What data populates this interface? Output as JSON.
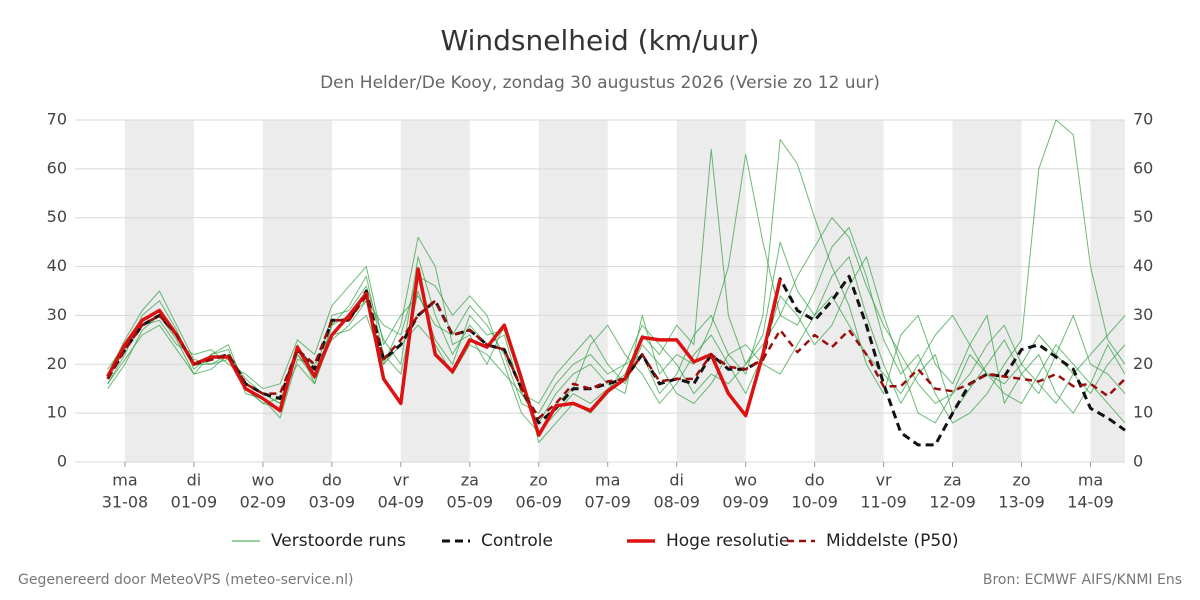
{
  "chart_data": {
    "type": "line",
    "title": "Windsnelheid (km/uur)",
    "subtitle": "Den Helder/De Kooy, zondag 30 augustus 2026 (Versie zo 12 uur)",
    "categories": [
      null,
      "31-08",
      null,
      null,
      null,
      "01-09",
      null,
      null,
      null,
      "02-09",
      null,
      null,
      null,
      "03-09",
      null,
      null,
      null,
      "04-09",
      null,
      null,
      null,
      "05-09",
      null,
      null,
      null,
      "06-09",
      null,
      null,
      null,
      "07-09",
      null,
      null,
      null,
      "08-09",
      null,
      null,
      null,
      "09-09",
      null,
      null,
      null,
      "10-09",
      null,
      null,
      null,
      "11-09",
      null,
      null,
      null,
      "12-09",
      null,
      null,
      null,
      "13-09",
      null,
      null,
      null,
      "14-09",
      null,
      null
    ],
    "weekdays": [
      null,
      "ma",
      null,
      null,
      null,
      "di",
      null,
      null,
      null,
      "wo",
      null,
      null,
      null,
      "do",
      null,
      null,
      null,
      "vr",
      null,
      null,
      null,
      "za",
      null,
      null,
      null,
      "zo",
      null,
      null,
      null,
      "ma",
      null,
      null,
      null,
      "di",
      null,
      null,
      null,
      "wo",
      null,
      null,
      null,
      "do",
      null,
      null,
      null,
      "vr",
      null,
      null,
      null,
      "za",
      null,
      null,
      null,
      "zo",
      null,
      null,
      null,
      "ma",
      null,
      null
    ],
    "ylim": [
      0,
      70
    ],
    "yticks": [
      0,
      10,
      20,
      30,
      40,
      50,
      60,
      70
    ],
    "y2lim": [
      0,
      70
    ],
    "y2ticks": [
      0,
      10,
      20,
      30,
      40,
      50,
      60,
      70
    ],
    "grid": true,
    "ensemble": {
      "name": "Verstoorde runs",
      "color": "#2e9e3e",
      "runs": [
        [
          16,
          22,
          30,
          33,
          27,
          19,
          22,
          24,
          15,
          12,
          11,
          24,
          16,
          28,
          32,
          38,
          22,
          18,
          35,
          25,
          20,
          30,
          26,
          27,
          16,
          6,
          10,
          14,
          12,
          15,
          18,
          26,
          22,
          28,
          24,
          64,
          30,
          20,
          26,
          45,
          35,
          30,
          38,
          42,
          30,
          20,
          12,
          18,
          22,
          10,
          15,
          20,
          25,
          18,
          14,
          22,
          30,
          20,
          18,
          14
        ],
        [
          18,
          25,
          31,
          35,
          28,
          21,
          20,
          22,
          17,
          14,
          12,
          22,
          18,
          30,
          31,
          36,
          25,
          20,
          42,
          30,
          22,
          28,
          24,
          26,
          14,
          8,
          14,
          18,
          20,
          16,
          14,
          30,
          18,
          22,
          20,
          28,
          40,
          63,
          45,
          30,
          28,
          35,
          44,
          48,
          38,
          25,
          18,
          22,
          14,
          8,
          10,
          14,
          20,
          25,
          60,
          70,
          67,
          40,
          25,
          20
        ],
        [
          15,
          20,
          27,
          30,
          25,
          18,
          22,
          23,
          14,
          13,
          9,
          21,
          20,
          25,
          28,
          33,
          20,
          28,
          46,
          40,
          24,
          26,
          20,
          28,
          18,
          4,
          8,
          12,
          10,
          14,
          20,
          22,
          14,
          18,
          26,
          30,
          22,
          18,
          30,
          66,
          61,
          50,
          40,
          32,
          20,
          14,
          26,
          30,
          20,
          16,
          24,
          30,
          12,
          18,
          22,
          14,
          10,
          16,
          24,
          18
        ],
        [
          19,
          24,
          28,
          29,
          24,
          22,
          23,
          20,
          18,
          15,
          16,
          25,
          22,
          32,
          36,
          40,
          24,
          30,
          34,
          28,
          26,
          32,
          28,
          22,
          12,
          10,
          16,
          20,
          22,
          18,
          20,
          28,
          24,
          20,
          14,
          18,
          16,
          20,
          24,
          30,
          38,
          44,
          50,
          46,
          36,
          28,
          22,
          16,
          12,
          14,
          18,
          24,
          28,
          20,
          16,
          12,
          18,
          22,
          26,
          30
        ],
        [
          17,
          23,
          28,
          30,
          26,
          20,
          20,
          21,
          16,
          14,
          12,
          22,
          17,
          28,
          30,
          33,
          28,
          26,
          38,
          36,
          30,
          34,
          30,
          20,
          10,
          6,
          12,
          15,
          24,
          28,
          22,
          18,
          12,
          16,
          22,
          26,
          20,
          14,
          22,
          34,
          30,
          24,
          28,
          36,
          42,
          30,
          20,
          10,
          8,
          14,
          22,
          18,
          14,
          12,
          18,
          24,
          20,
          16,
          12,
          8
        ],
        [
          16,
          21,
          26,
          28,
          23,
          18,
          19,
          22,
          15,
          12,
          13,
          20,
          16,
          26,
          27,
          30,
          20,
          24,
          28,
          24,
          18,
          24,
          22,
          18,
          14,
          12,
          18,
          22,
          26,
          20,
          16,
          24,
          20,
          14,
          12,
          16,
          22,
          24,
          20,
          18,
          24,
          30,
          34,
          28,
          22,
          18,
          14,
          20,
          26,
          30,
          24,
          18,
          16,
          20,
          26,
          22,
          18,
          14,
          20,
          24
        ]
      ]
    },
    "series": [
      {
        "name": "Controle",
        "color": "#111111",
        "dash": "8 5",
        "width": 3,
        "values": [
          17,
          23,
          28,
          30,
          26,
          20,
          21,
          22,
          16,
          14,
          13,
          23,
          19,
          29,
          29,
          35,
          21,
          24,
          30,
          33,
          26,
          27,
          24,
          23,
          15,
          8,
          11,
          15,
          15,
          16,
          17,
          22,
          16,
          17,
          16,
          22,
          19,
          19,
          21,
          37.5,
          31,
          29,
          33,
          38,
          28,
          16,
          6,
          3.5,
          3.5,
          10,
          16,
          18,
          17.5,
          23,
          24,
          21.5,
          19,
          11,
          9,
          6.5
        ]
      },
      {
        "name": "Hoge resolutie",
        "color": "#dd1111",
        "dash": "none",
        "width": 3.5,
        "values": [
          17.5,
          24,
          29,
          31,
          26,
          20,
          21.5,
          21.5,
          15,
          13,
          10.5,
          23.5,
          17.5,
          26,
          30,
          34.5,
          17,
          12,
          39.5,
          22,
          18.5,
          25,
          23.5,
          28,
          17,
          5.5,
          11.5,
          12,
          10.5,
          14.5,
          17,
          25.5,
          25,
          25,
          20.5,
          22,
          14,
          9.5,
          22,
          37.5,
          null,
          null,
          null,
          null,
          null,
          null,
          null,
          null,
          null,
          null,
          null,
          null,
          null,
          null,
          null,
          null,
          null,
          null,
          null,
          null
        ]
      },
      {
        "name": "Middelste (P50)",
        "color": "#9b0d0d",
        "dash": "7 5",
        "width": 2.5,
        "values": [
          17,
          23,
          28,
          30,
          26,
          20,
          21,
          22,
          16,
          14,
          14,
          23,
          20,
          29,
          29,
          34,
          21,
          25,
          30,
          33,
          26,
          27,
          24,
          23,
          15,
          9,
          12,
          16,
          15,
          16.5,
          17,
          22,
          16.5,
          17,
          17,
          22,
          19.5,
          19,
          21,
          27,
          22.5,
          26,
          23.5,
          27,
          22,
          15.5,
          15.5,
          19,
          15,
          14.5,
          16,
          18,
          17.5,
          17,
          16.5,
          18,
          15.5,
          16,
          13.5,
          17
        ]
      }
    ]
  },
  "footer": {
    "left": "Gegenereerd door MeteoVPS (meteo-service.nl)",
    "right": "Bron: ECMWF AIFS/KNMI Ens"
  }
}
